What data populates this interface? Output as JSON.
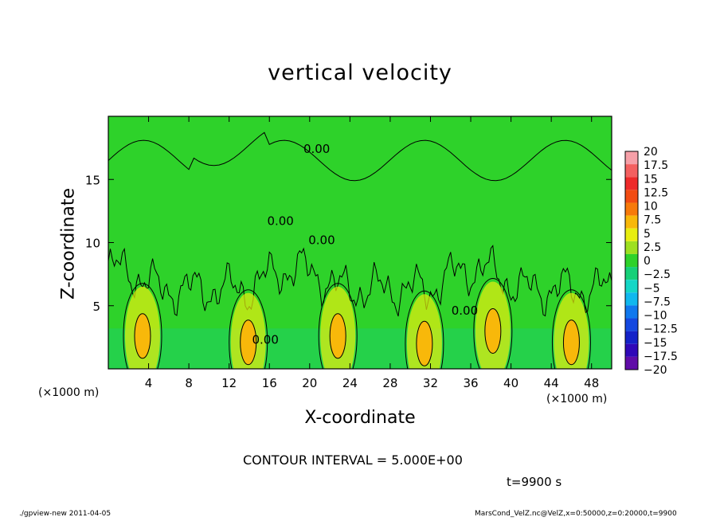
{
  "chart_data": {
    "type": "heatmap",
    "title": "vertical velocity",
    "xlabel": "X-coordinate",
    "ylabel": "Z-coordinate",
    "x_unit": "(×1000 m)",
    "xlim": [
      0,
      50
    ],
    "ylim": [
      0,
      20
    ],
    "x_ticks": [
      4,
      8,
      12,
      16,
      20,
      24,
      28,
      32,
      36,
      40,
      44,
      48
    ],
    "y_ticks": [
      5,
      10,
      15
    ],
    "contour_interval": "CONTOUR INTERVAL = 5.000E+00",
    "contour_labels": [
      {
        "text": "0.00",
        "x": 20.7,
        "z": 17.4
      },
      {
        "text": "0.00",
        "x": 17.1,
        "z": 11.7
      },
      {
        "text": "0.00",
        "x": 21.2,
        "z": 10.2
      },
      {
        "text": "0.00",
        "x": 15.6,
        "z": 2.3
      },
      {
        "text": "0.00",
        "x": 35.4,
        "z": 4.6
      }
    ],
    "colorbar": {
      "levels": [
        "20",
        "17.5",
        "15",
        "12.5",
        "10",
        "7.5",
        "5",
        "2.5",
        "0",
        "−2.5",
        "−5",
        "−7.5",
        "−10",
        "−12.5",
        "−15",
        "−17.5",
        "−20"
      ],
      "colors": [
        "#f6a0a8",
        "#f46060",
        "#ee2a2a",
        "#f24c12",
        "#f77a0a",
        "#f8b80a",
        "#e8ee10",
        "#9ee020",
        "#2ed22a",
        "#16d078",
        "#14d6c6",
        "#10b8ee",
        "#1078ee",
        "#1448e0",
        "#1422c8",
        "#3008b8",
        "#600ca8"
      ]
    },
    "updraft_cores": [
      {
        "x": 3.4,
        "z": 2.6
      },
      {
        "x": 13.9,
        "z": 2.1
      },
      {
        "x": 22.8,
        "z": 2.6
      },
      {
        "x": 31.4,
        "z": 2.0
      },
      {
        "x": 38.2,
        "z": 3.0
      },
      {
        "x": 46.0,
        "z": 2.1
      }
    ]
  },
  "labels": {
    "time": "t=9900 s",
    "footer_left": "./gpview-new  2011-04-05",
    "footer_right": "MarsCond_VelZ.nc@VelZ,x=0:50000,z=0:20000,t=9900"
  },
  "colors": {
    "background_field": "#2ed22a",
    "boundary_layer": "#20d060",
    "updraft": "#e8ee10",
    "updraft_core": "#f8b80a"
  }
}
